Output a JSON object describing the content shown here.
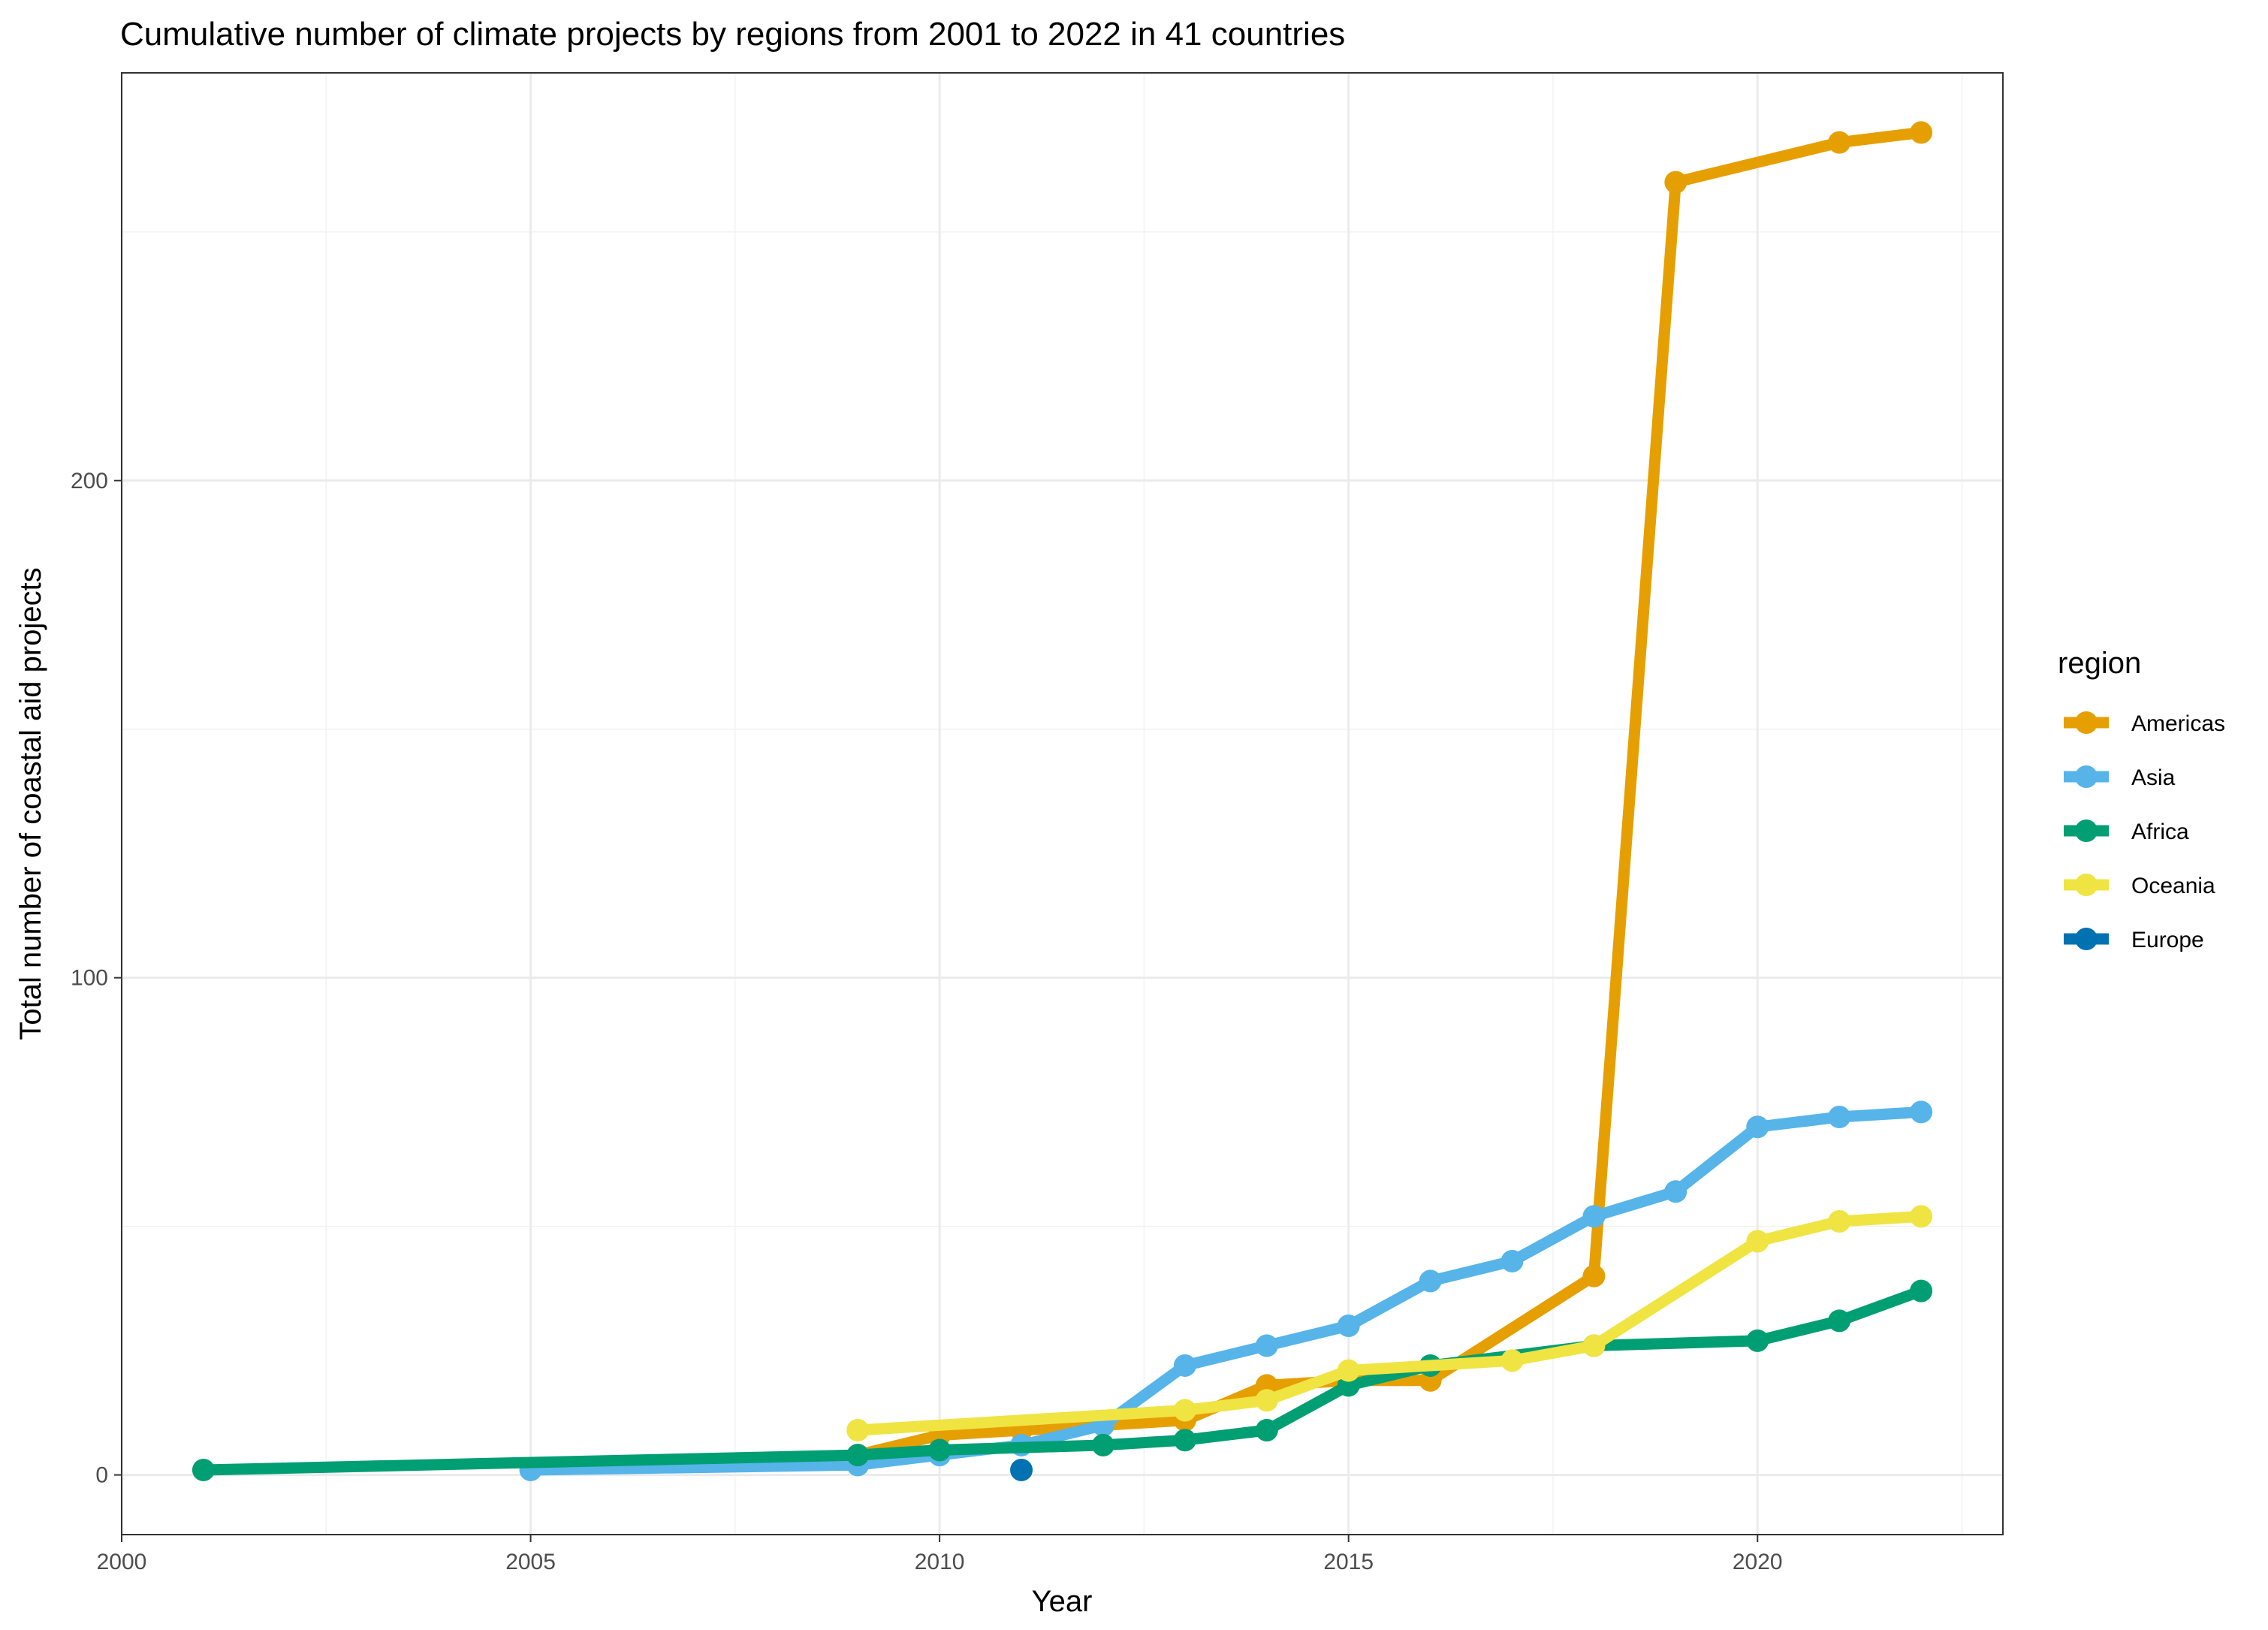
{
  "chart_data": {
    "type": "line",
    "title": "Cumulative number of climate projects by regions from 2001 to 2022 in 41 countries",
    "xlabel": "Year",
    "ylabel": "Total number of coastal aid projects",
    "xlim": [
      2000,
      2023
    ],
    "ylim": [
      -12,
      282
    ],
    "x_ticks": [
      2000,
      2005,
      2010,
      2015,
      2020
    ],
    "x_tick_labels": [
      "2000",
      "2005",
      "2010",
      "2015",
      "2020"
    ],
    "y_ticks": [
      0,
      100,
      200
    ],
    "y_tick_labels": [
      "0",
      "100",
      "200"
    ],
    "x_minor_ticks": [
      2002.5,
      2007.5,
      2012.5,
      2017.5,
      2022.5
    ],
    "y_minor_ticks": [
      50,
      150,
      250
    ],
    "grid": true,
    "legend": {
      "title": "region",
      "position": "right"
    },
    "series": [
      {
        "name": "Americas",
        "color": "#E69F00",
        "points": [
          [
            2009,
            4
          ],
          [
            2010,
            8
          ],
          [
            2011,
            9
          ],
          [
            2012,
            10
          ],
          [
            2013,
            11
          ],
          [
            2014,
            18
          ],
          [
            2015,
            19
          ],
          [
            2016,
            19
          ],
          [
            2018,
            40
          ],
          [
            2019,
            260
          ],
          [
            2021,
            268
          ],
          [
            2022,
            270
          ]
        ]
      },
      {
        "name": "Asia",
        "color": "#56B4E9",
        "points": [
          [
            2005,
            1
          ],
          [
            2009,
            2
          ],
          [
            2010,
            4
          ],
          [
            2011,
            6
          ],
          [
            2012,
            10
          ],
          [
            2013,
            22
          ],
          [
            2014,
            26
          ],
          [
            2015,
            30
          ],
          [
            2016,
            39
          ],
          [
            2017,
            43
          ],
          [
            2018,
            52
          ],
          [
            2019,
            57
          ],
          [
            2020,
            70
          ],
          [
            2021,
            72
          ],
          [
            2022,
            73
          ]
        ]
      },
      {
        "name": "Africa",
        "color": "#009E73",
        "points": [
          [
            2001,
            1
          ],
          [
            2009,
            4
          ],
          [
            2010,
            5
          ],
          [
            2012,
            6
          ],
          [
            2013,
            7
          ],
          [
            2014,
            9
          ],
          [
            2015,
            18
          ],
          [
            2016,
            22
          ],
          [
            2018,
            26
          ],
          [
            2020,
            27
          ],
          [
            2021,
            31
          ],
          [
            2022,
            37
          ]
        ]
      },
      {
        "name": "Oceania",
        "color": "#F0E442",
        "points": [
          [
            2009,
            9
          ],
          [
            2013,
            13
          ],
          [
            2014,
            15
          ],
          [
            2015,
            21
          ],
          [
            2017,
            23
          ],
          [
            2018,
            26
          ],
          [
            2020,
            47
          ],
          [
            2021,
            51
          ],
          [
            2022,
            52
          ]
        ]
      },
      {
        "name": "Europe",
        "color": "#0072B2",
        "points": [
          [
            2011,
            1
          ]
        ]
      }
    ]
  }
}
